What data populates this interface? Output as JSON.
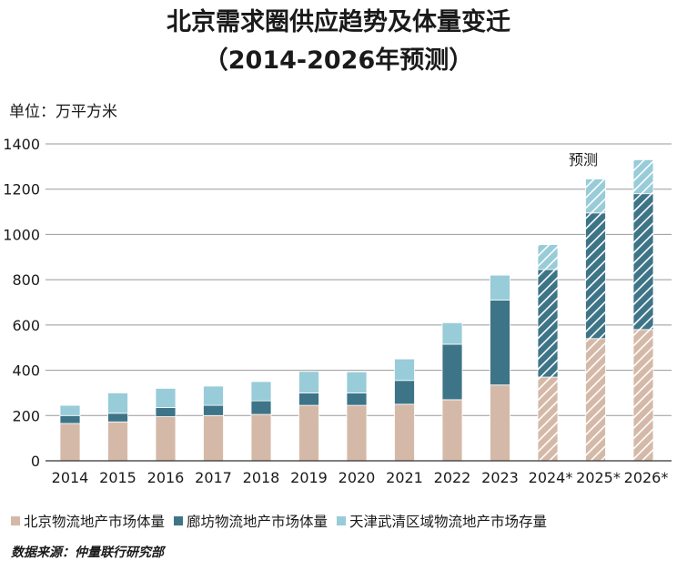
{
  "title_line1": "北京需求圈供应趋势及体量变迁",
  "title_line2": "（2014-2026年预测）",
  "unit_label": "单位：万平方米",
  "forecast_label": "预测",
  "source": "数据来源：仲量联行研究部",
  "colors": {
    "beijing": "#d5b9a8",
    "langfang": "#3e7487",
    "tianjin": "#98ccd8",
    "gridline": "#999999",
    "axis": "#333333"
  },
  "chart_data": {
    "type": "bar",
    "stacked": true,
    "categories": [
      "2014",
      "2015",
      "2016",
      "2017",
      "2018",
      "2019",
      "2020",
      "2021",
      "2022",
      "2023",
      "2024*",
      "2025*",
      "2026*"
    ],
    "forecast_categories": [
      "2024*",
      "2025*",
      "2026*"
    ],
    "series": [
      {
        "name": "北京物流地产市场体量",
        "color": "#d5b9a8",
        "values": [
          165,
          172,
          195,
          200,
          205,
          245,
          245,
          250,
          270,
          335,
          370,
          540,
          580
        ]
      },
      {
        "name": "廊坊物流地产市场体量",
        "color": "#3e7487",
        "values": [
          35,
          38,
          40,
          45,
          60,
          55,
          55,
          105,
          245,
          375,
          475,
          555,
          600
        ]
      },
      {
        "name": "天津武清区域物流地产市场存量",
        "color": "#98ccd8",
        "values": [
          45,
          90,
          85,
          85,
          85,
          95,
          93,
          95,
          95,
          110,
          110,
          150,
          150
        ]
      }
    ],
    "ylim": [
      0,
      1400
    ],
    "yticks": [
      0,
      200,
      400,
      600,
      800,
      1000,
      1200,
      1400
    ],
    "grid": true,
    "legend_position": "bottom"
  }
}
